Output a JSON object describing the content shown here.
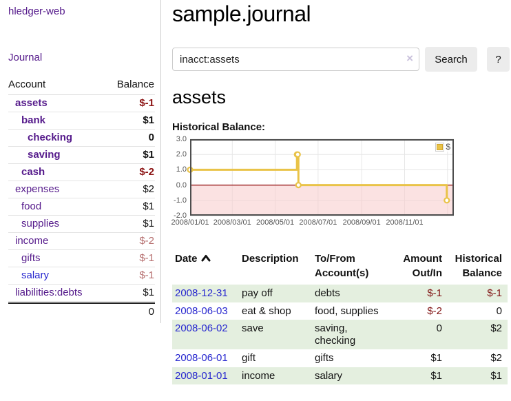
{
  "app": {
    "brand": "hledger-web",
    "nav_journal": "Journal"
  },
  "colors": {
    "link_purple": "#551a8b",
    "link_blue": "#2727cf",
    "negative_strong": "#8c1414",
    "negative_muted": "#b66f6f",
    "negative_table": "#7f1111",
    "stripe_green": "#e4efdf",
    "chart_line": "#e9c348",
    "chart_negative_fill": "#f8caca",
    "chart_zero_line": "#8b0000",
    "chart_border": "#4d4d4d",
    "grid": "#e6e6e6"
  },
  "sidebar": {
    "accounts_header": {
      "account": "Account",
      "balance": "Balance"
    },
    "accounts": [
      {
        "name": "assets",
        "indent": 0,
        "bold": true,
        "balance": "$-1",
        "neg": "strong",
        "link": "purple"
      },
      {
        "name": "bank",
        "indent": 1,
        "bold": true,
        "balance": "$1",
        "neg": "none",
        "link": "purple"
      },
      {
        "name": "checking",
        "indent": 2,
        "bold": true,
        "balance": "0",
        "neg": "none",
        "link": "purple"
      },
      {
        "name": "saving",
        "indent": 2,
        "bold": true,
        "balance": "$1",
        "neg": "none",
        "link": "purple"
      },
      {
        "name": "cash",
        "indent": 1,
        "bold": true,
        "balance": "$-2",
        "neg": "strong",
        "link": "purple"
      },
      {
        "name": "expenses",
        "indent": 0,
        "bold": false,
        "balance": "$2",
        "neg": "none",
        "link": "purple"
      },
      {
        "name": "food",
        "indent": 1,
        "bold": false,
        "balance": "$1",
        "neg": "none",
        "link": "purple"
      },
      {
        "name": "supplies",
        "indent": 1,
        "bold": false,
        "balance": "$1",
        "neg": "none",
        "link": "purple"
      },
      {
        "name": "income",
        "indent": 0,
        "bold": false,
        "balance": "$-2",
        "neg": "muted",
        "link": "purple"
      },
      {
        "name": "gifts",
        "indent": 1,
        "bold": false,
        "balance": "$-1",
        "neg": "muted",
        "link": "purple"
      },
      {
        "name": "salary",
        "indent": 1,
        "bold": false,
        "balance": "$-1",
        "neg": "muted",
        "link": "blue"
      },
      {
        "name": "liabilities:debts",
        "indent": 0,
        "bold": false,
        "balance": "$1",
        "neg": "none",
        "link": "purple"
      }
    ],
    "total": "0"
  },
  "header": {
    "title": "sample.journal"
  },
  "search": {
    "value": "inacct:assets",
    "clear_icon": "×",
    "button": "Search",
    "help_button": "?"
  },
  "account_page": {
    "title": "assets",
    "chart_label": "Historical Balance:"
  },
  "chart_data": {
    "type": "line",
    "step": true,
    "title": "Historical Balance:",
    "series": [
      {
        "name": "$",
        "points": [
          [
            "2008-01-01",
            1
          ],
          [
            "2008-06-01",
            2
          ],
          [
            "2008-06-02",
            2
          ],
          [
            "2008-06-03",
            0
          ],
          [
            "2008-12-31",
            -1
          ]
        ]
      }
    ],
    "ylim": [
      -2,
      3
    ],
    "yticks": [
      3.0,
      2.0,
      1.0,
      0.0,
      -1.0,
      -2.0
    ],
    "xticks": [
      "2008/01/01",
      "2008/03/01",
      "2008/05/01",
      "2008/07/01",
      "2008/09/01",
      "2008/11/01"
    ],
    "extra_gridlines": [
      "2009/01/01"
    ],
    "x_start": "2008-01-01",
    "x_end": "2009-01-10",
    "legend_position": "top-right",
    "grid": true
  },
  "register": {
    "columns": [
      {
        "label": "Date",
        "sortable": true
      },
      {
        "label": "Description"
      },
      {
        "label": "To/From Account(s)"
      },
      {
        "label": "Amount Out/In",
        "align": "right"
      },
      {
        "label": "Historical Balance",
        "align": "right"
      }
    ],
    "rows": [
      {
        "date": "2008-12-31",
        "description": "pay off",
        "accounts": "debts",
        "amount": "$-1",
        "amount_neg": true,
        "balance": "$-1",
        "balance_neg": true,
        "stripe": true
      },
      {
        "date": "2008-06-03",
        "description": "eat & shop",
        "accounts": "food, supplies",
        "amount": "$-2",
        "amount_neg": true,
        "balance": "0",
        "balance_neg": false,
        "stripe": false
      },
      {
        "date": "2008-06-02",
        "description": "save",
        "accounts": "saving, checking",
        "amount": "0",
        "amount_neg": false,
        "balance": "$2",
        "balance_neg": false,
        "stripe": true
      },
      {
        "date": "2008-06-01",
        "description": "gift",
        "accounts": "gifts",
        "amount": "$1",
        "amount_neg": false,
        "balance": "$2",
        "balance_neg": false,
        "stripe": false
      },
      {
        "date": "2008-01-01",
        "description": "income",
        "accounts": "salary",
        "amount": "$1",
        "amount_neg": false,
        "balance": "$1",
        "balance_neg": false,
        "stripe": true
      }
    ]
  }
}
